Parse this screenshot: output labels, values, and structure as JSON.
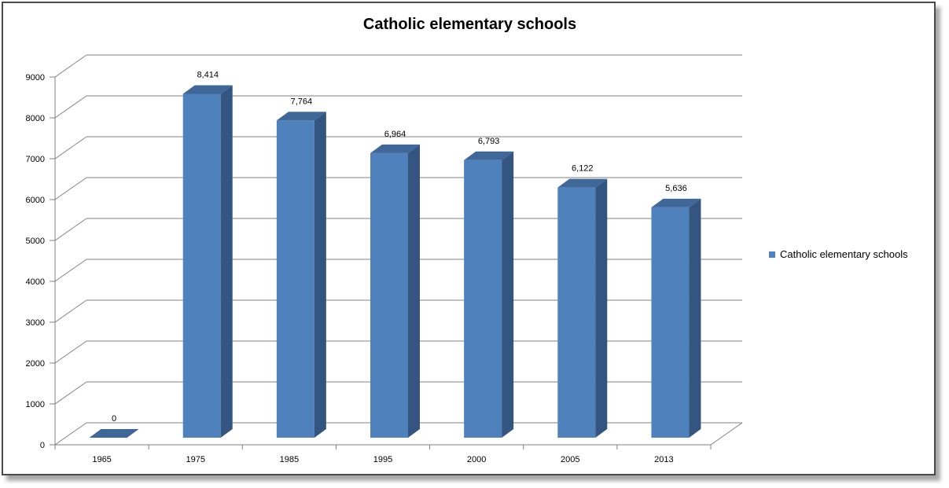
{
  "chart_data": {
    "type": "bar",
    "title": "Catholic elementary schools",
    "categories": [
      "1965",
      "1975",
      "1985",
      "1995",
      "2000",
      "2005",
      "2013"
    ],
    "series": [
      {
        "name": "Catholic elementary schools",
        "values": [
          0,
          8414,
          7764,
          6964,
          6793,
          6122,
          5636
        ],
        "data_labels": [
          "0",
          "8,414",
          "7,764",
          "6,964",
          "6,793",
          "6,122",
          "5,636"
        ]
      }
    ],
    "yticks": [
      "0",
      "1000",
      "2000",
      "3000",
      "4000",
      "5000",
      "6000",
      "7000",
      "8000",
      "9000"
    ],
    "ylim": [
      0,
      9000
    ],
    "grid": true,
    "style": "3d-column",
    "legend_position": "right",
    "colors": {
      "bar_front": "#4F81BD",
      "bar_side": "#34557F",
      "bar_top": "#3F6798",
      "gridline": "#808080"
    }
  }
}
